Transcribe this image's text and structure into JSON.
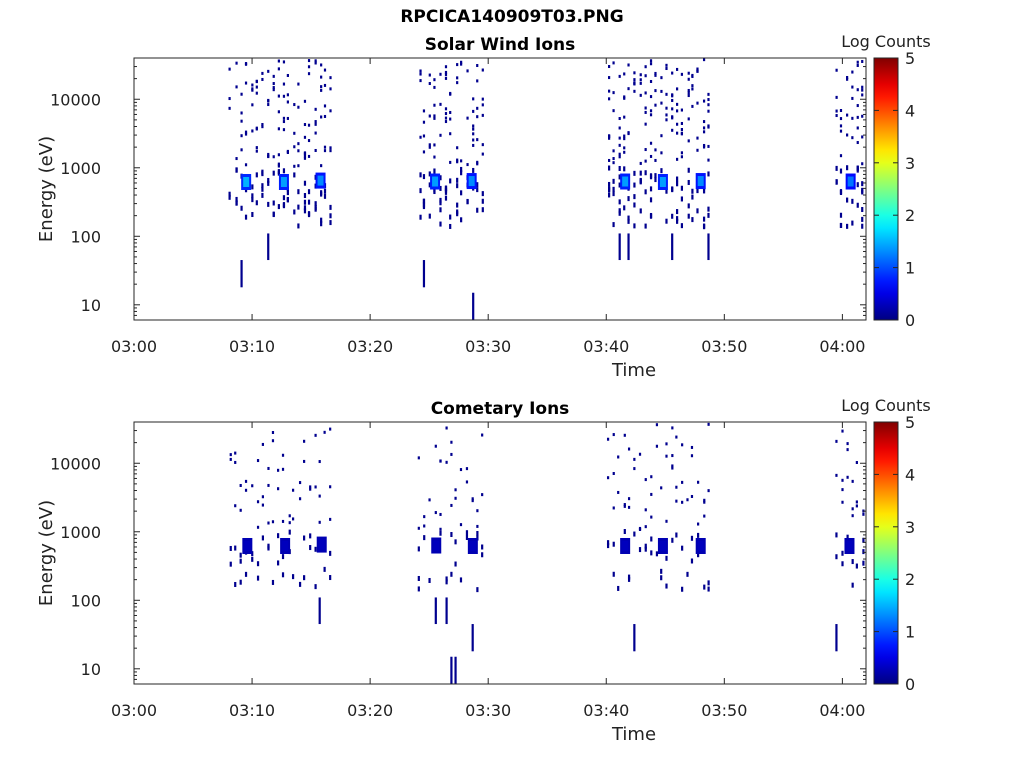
{
  "figure_title": "RPCICA140909T03.PNG",
  "chart_data": [
    {
      "type": "heatmap",
      "title": "Solar Wind Ions",
      "xlabel": "Time",
      "ylabel": "Energy (eV)",
      "y_scale": "log",
      "xlim": [
        "03:00",
        "04:02"
      ],
      "ylim": [
        6,
        40000
      ],
      "x_ticks": [
        "03:00",
        "03:10",
        "03:20",
        "03:30",
        "03:40",
        "03:50",
        "04:00"
      ],
      "y_ticks": [
        "10",
        "100",
        "1000",
        "10000"
      ],
      "colorbar": {
        "label": "Log Counts",
        "range": [
          0,
          5
        ],
        "ticks": [
          "0",
          "1",
          "2",
          "3",
          "4",
          "5"
        ],
        "colormap": "jet"
      },
      "bursts": [
        {
          "start": "03:08",
          "end": "03:17.3"
        },
        {
          "start": "03:24",
          "end": "03:30"
        },
        {
          "start": "03:40",
          "end": "03:49.3"
        },
        {
          "start": "03:59.3",
          "end": "04:02"
        }
      ],
      "peak_energy_eV": 650,
      "peaks": [
        {
          "time": "03:09.5",
          "energy_eV": 620,
          "log_counts": 1.5
        },
        {
          "time": "03:12.7",
          "energy_eV": 620,
          "log_counts": 1.4
        },
        {
          "time": "03:15.8",
          "energy_eV": 650,
          "log_counts": 1.3
        },
        {
          "time": "03:25.5",
          "energy_eV": 630,
          "log_counts": 1.4
        },
        {
          "time": "03:28.6",
          "energy_eV": 640,
          "log_counts": 1.3
        },
        {
          "time": "03:41.6",
          "energy_eV": 630,
          "log_counts": 1.4
        },
        {
          "time": "03:44.8",
          "energy_eV": 620,
          "log_counts": 1.4
        },
        {
          "time": "03:48.0",
          "energy_eV": 640,
          "log_counts": 1.3
        },
        {
          "time": "04:00.7",
          "energy_eV": 630,
          "log_counts": 1.2
        }
      ]
    },
    {
      "type": "heatmap",
      "title": "Cometary Ions",
      "xlabel": "Time",
      "ylabel": "Energy (eV)",
      "y_scale": "log",
      "xlim": [
        "03:00",
        "04:02"
      ],
      "ylim": [
        6,
        40000
      ],
      "x_ticks": [
        "03:00",
        "03:10",
        "03:20",
        "03:30",
        "03:40",
        "03:50",
        "04:00"
      ],
      "y_ticks": [
        "10",
        "100",
        "1000",
        "10000"
      ],
      "colorbar": {
        "label": "Log Counts",
        "range": [
          0,
          5
        ],
        "ticks": [
          "0",
          "1",
          "2",
          "3",
          "4",
          "5"
        ],
        "colormap": "jet"
      },
      "bursts": [
        {
          "start": "03:08",
          "end": "03:17.3"
        },
        {
          "start": "03:24",
          "end": "03:30"
        },
        {
          "start": "03:40",
          "end": "03:49.3"
        },
        {
          "start": "03:59.3",
          "end": "04:02"
        }
      ],
      "peak_energy_eV": 650,
      "peaks": [
        {
          "time": "03:09.6",
          "energy_eV": 620,
          "log_counts": 0.3
        },
        {
          "time": "03:12.8",
          "energy_eV": 620,
          "log_counts": 0.3
        },
        {
          "time": "03:15.9",
          "energy_eV": 650,
          "log_counts": 0.3
        },
        {
          "time": "03:25.6",
          "energy_eV": 630,
          "log_counts": 0.3
        },
        {
          "time": "03:28.7",
          "energy_eV": 620,
          "log_counts": 0.3
        },
        {
          "time": "03:41.6",
          "energy_eV": 620,
          "log_counts": 0.3
        },
        {
          "time": "03:44.8",
          "energy_eV": 620,
          "log_counts": 0.3
        },
        {
          "time": "03:48.0",
          "energy_eV": 620,
          "log_counts": 0.3
        },
        {
          "time": "04:00.6",
          "energy_eV": 620,
          "log_counts": 0.3
        }
      ]
    }
  ]
}
